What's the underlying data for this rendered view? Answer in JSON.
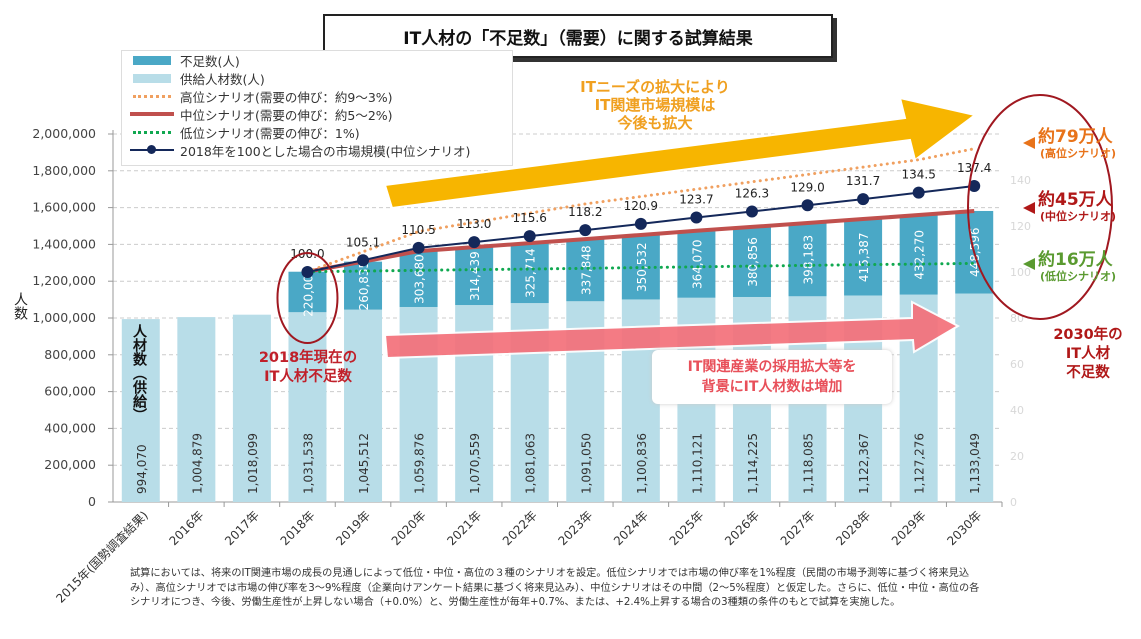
{
  "title": "IT人材の「不足数」（需要）に関する試算結果",
  "legend": {
    "shortage": "不足数(人)",
    "supply": "供給人材数(人)",
    "high": "高位シナリオ(需要の伸び：約9～3%)",
    "mid": "中位シナリオ(需要の伸び：約5～2%)",
    "low": "低位シナリオ(需要の伸び：1%)",
    "index": "2018年を100とした場合の市場規模(中位シナリオ)"
  },
  "colors": {
    "shortage": "#4aa8c6",
    "supply": "#b8dde8",
    "high": "#f0a060",
    "mid": "#c0504d",
    "low": "#10a850",
    "index": "#14285a",
    "yellow_arrow": "#f7b500",
    "pink_arrow": "#f4707a",
    "ellipse": "#a01820"
  },
  "annotations": {
    "yellow_arrow": [
      "ITニーズの拡大により",
      "IT関連市場規模は",
      "今後も拡大"
    ],
    "pink_arrow": [
      "IT関連産業の採用拡大等を",
      "背景にIT人材数は増加"
    ],
    "note_2018": [
      "2018年現在の",
      "IT人材不足数"
    ],
    "supply_tag": "人材数（供給）",
    "callout_high": {
      "big": "約79万人",
      "small": "(高位シナリオ)"
    },
    "callout_mid": {
      "big": "約45万人",
      "small": "(中位シナリオ)"
    },
    "callout_low": {
      "big": "約16万人",
      "small": "(低位シナリオ)"
    },
    "note_2030": [
      "2030年の",
      "IT人材",
      "不足数"
    ]
  },
  "footnote": [
    "試算においては、将来のIT関連市場の成長の見通しによって低位・中位・高位の３種のシナリオを設定。低位シナリオでは市場の伸び率を1%程度（民間の市場予測等に基づく将来見込",
    "み）、高位シナリオでは市場の伸び率を3～9%程度（企業向けアンケート結果に基づく将来見込み）、中位シナリオはその中間（2～5%程度）と仮定した。さらに、低位・中位・高位の各",
    "シナリオにつき、今後、労働生産性が上昇しない場合（+0.0%）と、労働生産性が毎年+0.7%、または、+2.4%上昇する場合の3種類の条件のもとで試算を実施した。"
  ],
  "chart_data": {
    "type": "bar",
    "stacked": true,
    "title": "IT人材の「不足数」（需要）に関する試算結果",
    "ylabel": "人数",
    "ylim": [
      0,
      2000000
    ],
    "y_ticks": [
      "0",
      "200,000",
      "400,000",
      "600,000",
      "800,000",
      "1,000,000",
      "1,200,000",
      "1,400,000",
      "1,600,000",
      "1,800,000",
      "2,000,000"
    ],
    "y2lim": [
      0,
      160
    ],
    "y2_ticks": [
      "0",
      "20",
      "40",
      "60",
      "80",
      "100",
      "120",
      "140"
    ],
    "grid": true,
    "legend_position": "top-left",
    "categories": [
      "2015年(国勢調査結果)",
      "2016年",
      "2017年",
      "2018年",
      "2019年",
      "2020年",
      "2021年",
      "2022年",
      "2023年",
      "2024年",
      "2025年",
      "2026年",
      "2027年",
      "2028年",
      "2029年",
      "2030年"
    ],
    "series": [
      {
        "name": "供給人材数(人)",
        "type": "bar",
        "values": [
          994070,
          1004879,
          1018099,
          1031538,
          1045512,
          1059876,
          1070559,
          1081063,
          1091050,
          1100836,
          1110121,
          1114225,
          1118085,
          1122367,
          1127276,
          1133049
        ],
        "labels": [
          "994,070",
          "1,004,879",
          "1,018,099",
          "1,031,538",
          "1,045,512",
          "1,059,876",
          "1,070,559",
          "1,081,063",
          "1,091,050",
          "1,100,836",
          "1,110,121",
          "1,114,225",
          "1,118,085",
          "1,122,367",
          "1,127,276",
          "1,133,049"
        ]
      },
      {
        "name": "不足数(人)",
        "type": "bar",
        "values": [
          null,
          null,
          null,
          220000,
          260835,
          303680,
          314439,
          325714,
          337848,
          350532,
          364070,
          380856,
          398183,
          415387,
          432270,
          448596
        ],
        "labels": [
          "",
          "",
          "",
          "220,000",
          "260,835",
          "303,680",
          "314,439",
          "325,714",
          "337,848",
          "350,532",
          "364,070",
          "380,856",
          "398,183",
          "415,387",
          "432,270",
          "448,596"
        ]
      },
      {
        "name": "高位シナリオ(需要の伸び：約9～3%)",
        "type": "line",
        "style": "dotted",
        "values": [
          null,
          null,
          null,
          1251538,
          1360000,
          1470000,
          1520000,
          1570000,
          1620000,
          1660000,
          1700000,
          1740000,
          1780000,
          1820000,
          1860000,
          1920000
        ]
      },
      {
        "name": "中位シナリオ(需要の伸び：約5～2%)",
        "type": "line",
        "values": [
          null,
          null,
          null,
          1251538,
          1306347,
          1363556,
          1384998,
          1406777,
          1428898,
          1451368,
          1474191,
          1495081,
          1516268,
          1537754,
          1559546,
          1581645
        ]
      },
      {
        "name": "低位シナリオ(需要の伸び：1%)",
        "type": "line",
        "style": "dotted",
        "values": [
          null,
          null,
          null,
          1251538,
          1255000,
          1259000,
          1263000,
          1266000,
          1270000,
          1274000,
          1278000,
          1282000,
          1286000,
          1290000,
          1293000,
          1297000
        ]
      },
      {
        "name": "2018年を100とした場合の市場規模(中位シナリオ)",
        "type": "line",
        "axis": "right",
        "values": [
          null,
          null,
          null,
          100.0,
          105.1,
          110.5,
          113.0,
          115.6,
          118.2,
          120.9,
          123.7,
          126.3,
          129.0,
          131.7,
          134.5,
          137.4
        ],
        "labels": [
          "",
          "",
          "",
          "100.0",
          "105.1",
          "110.5",
          "113.0",
          "115.6",
          "118.2",
          "120.9",
          "123.7",
          "126.3",
          "129.0",
          "131.7",
          "134.5",
          "137.4"
        ]
      }
    ]
  }
}
